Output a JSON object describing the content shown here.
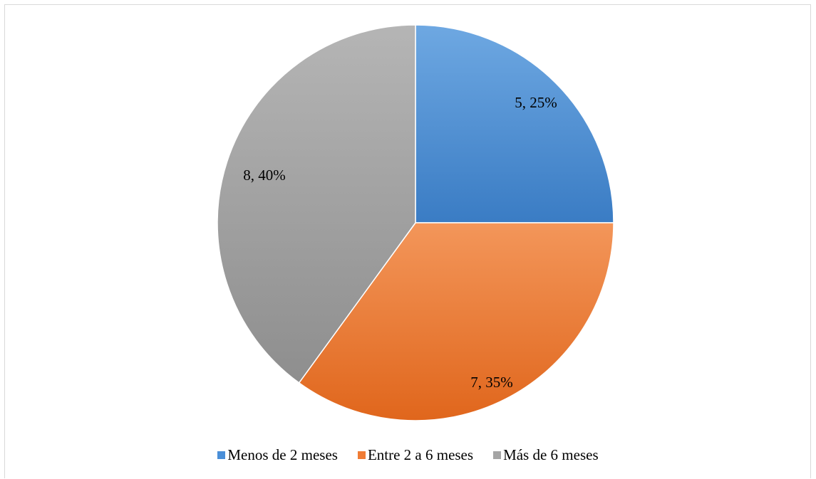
{
  "chart_data": {
    "type": "pie",
    "title": "",
    "categories": [
      "Menos de 2 meses",
      "Entre 2 a 6 meses",
      "Más de 6 meses"
    ],
    "values": [
      5,
      7,
      8
    ],
    "percentages": [
      25,
      35,
      40
    ],
    "data_labels": [
      "5, 25%",
      "7, 35%",
      "8, 40%"
    ],
    "colors": [
      "#4a8fd8",
      "#f07c35",
      "#a5a5a5"
    ],
    "gradient_light": [
      "#6ea8e2",
      "#f3965a",
      "#b5b5b5"
    ],
    "gradient_dark": [
      "#3a7cc4",
      "#e0661c",
      "#8e8e8e"
    ],
    "start_angle_deg": 0,
    "direction": "clockwise",
    "legend_position": "bottom"
  }
}
